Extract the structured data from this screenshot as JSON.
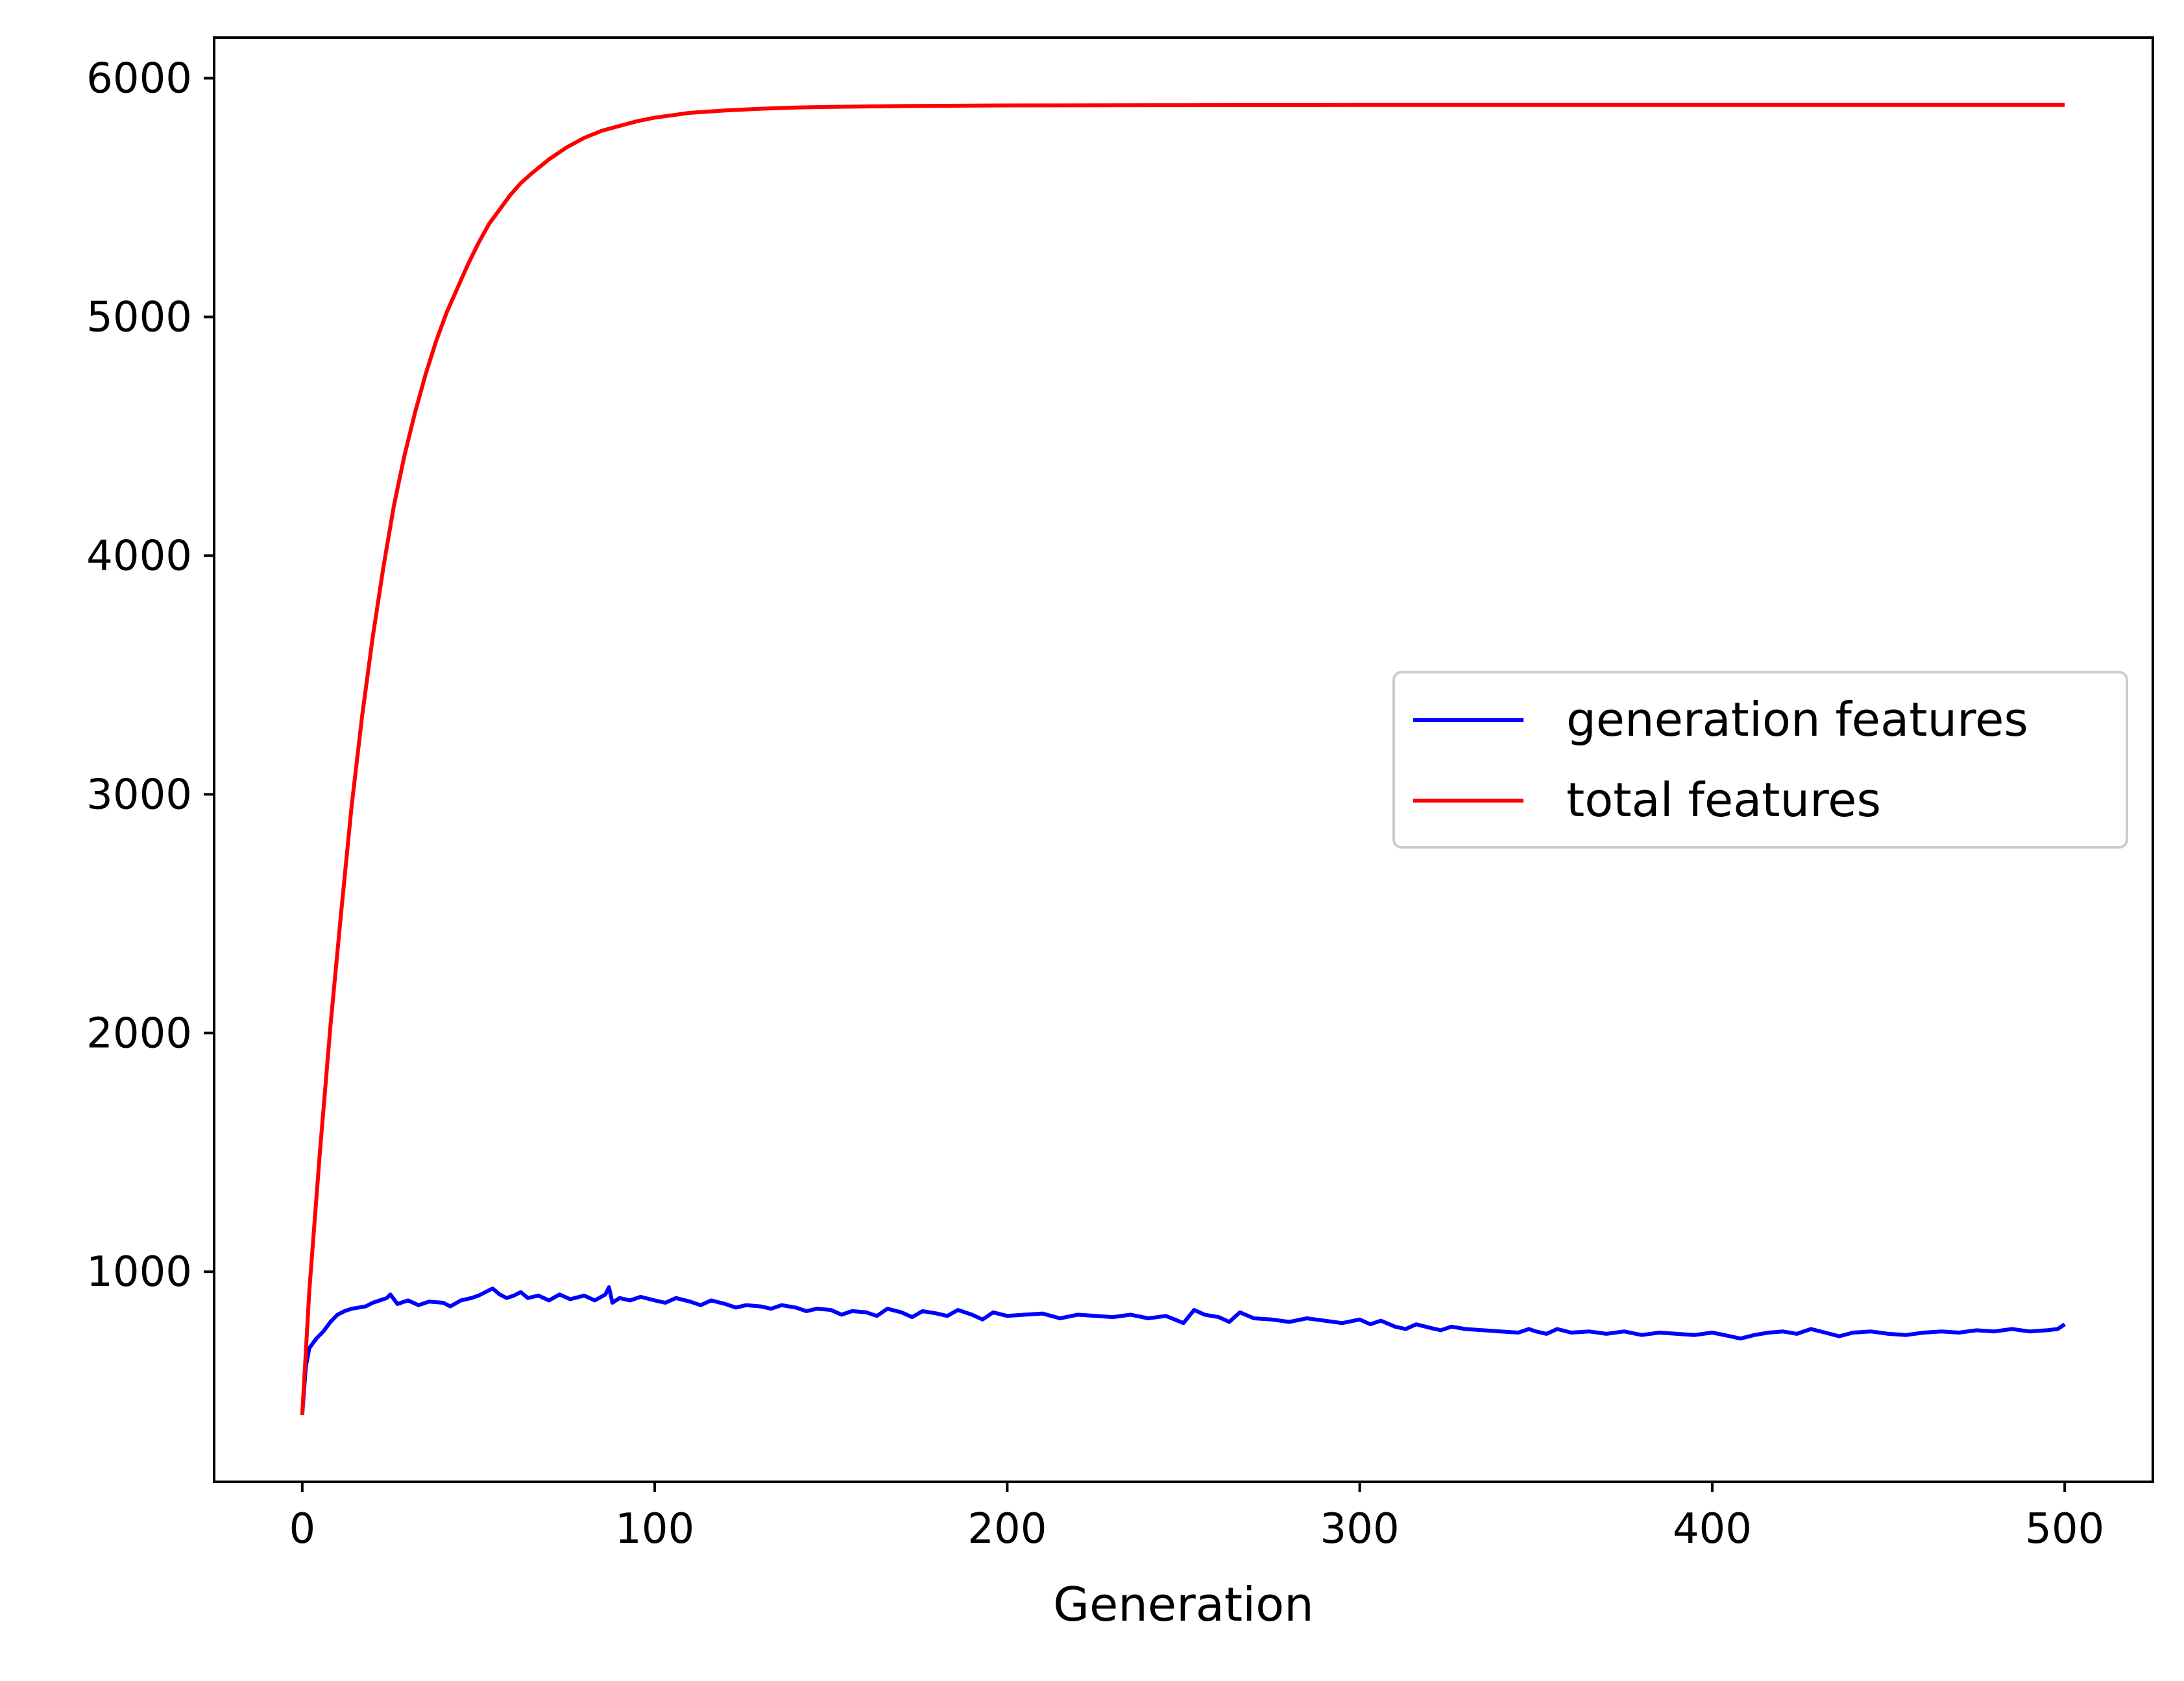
{
  "chart_data": {
    "type": "line",
    "title": "",
    "xlabel": "Generation",
    "ylabel": "",
    "xlim": [
      -25,
      525
    ],
    "ylim": [
      120,
      6170
    ],
    "xticks": [
      0,
      100,
      200,
      300,
      400,
      500
    ],
    "yticks": [
      1000,
      2000,
      3000,
      4000,
      5000,
      6000
    ],
    "grid": false,
    "legend_position": "center-right",
    "series": [
      {
        "name": "generation features",
        "color": "#0000ff",
        "points": [
          [
            0,
            400
          ],
          [
            1,
            600
          ],
          [
            2,
            680
          ],
          [
            4,
            720
          ],
          [
            6,
            750
          ],
          [
            8,
            790
          ],
          [
            10,
            820
          ],
          [
            12,
            835
          ],
          [
            14,
            845
          ],
          [
            16,
            850
          ],
          [
            18,
            855
          ],
          [
            20,
            870
          ],
          [
            22,
            880
          ],
          [
            24,
            890
          ],
          [
            25,
            905
          ],
          [
            27,
            865
          ],
          [
            30,
            880
          ],
          [
            33,
            860
          ],
          [
            36,
            875
          ],
          [
            40,
            870
          ],
          [
            42,
            855
          ],
          [
            45,
            880
          ],
          [
            48,
            890
          ],
          [
            50,
            900
          ],
          [
            52,
            915
          ],
          [
            54,
            930
          ],
          [
            56,
            905
          ],
          [
            58,
            890
          ],
          [
            60,
            900
          ],
          [
            62,
            915
          ],
          [
            64,
            890
          ],
          [
            67,
            900
          ],
          [
            70,
            880
          ],
          [
            73,
            905
          ],
          [
            76,
            885
          ],
          [
            80,
            900
          ],
          [
            83,
            880
          ],
          [
            86,
            905
          ],
          [
            87,
            935
          ],
          [
            88,
            870
          ],
          [
            90,
            890
          ],
          [
            93,
            880
          ],
          [
            96,
            895
          ],
          [
            100,
            880
          ],
          [
            103,
            870
          ],
          [
            106,
            890
          ],
          [
            110,
            875
          ],
          [
            113,
            860
          ],
          [
            116,
            880
          ],
          [
            120,
            865
          ],
          [
            123,
            850
          ],
          [
            126,
            860
          ],
          [
            130,
            855
          ],
          [
            133,
            845
          ],
          [
            136,
            860
          ],
          [
            140,
            850
          ],
          [
            143,
            835
          ],
          [
            146,
            845
          ],
          [
            150,
            840
          ],
          [
            153,
            820
          ],
          [
            156,
            835
          ],
          [
            160,
            830
          ],
          [
            163,
            815
          ],
          [
            166,
            845
          ],
          [
            170,
            830
          ],
          [
            173,
            810
          ],
          [
            176,
            835
          ],
          [
            180,
            825
          ],
          [
            183,
            815
          ],
          [
            186,
            840
          ],
          [
            190,
            820
          ],
          [
            193,
            800
          ],
          [
            196,
            830
          ],
          [
            200,
            815
          ],
          [
            205,
            820
          ],
          [
            210,
            825
          ],
          [
            215,
            805
          ],
          [
            220,
            820
          ],
          [
            225,
            815
          ],
          [
            230,
            810
          ],
          [
            235,
            820
          ],
          [
            240,
            805
          ],
          [
            245,
            815
          ],
          [
            250,
            785
          ],
          [
            253,
            840
          ],
          [
            256,
            820
          ],
          [
            260,
            810
          ],
          [
            263,
            790
          ],
          [
            266,
            830
          ],
          [
            270,
            805
          ],
          [
            275,
            800
          ],
          [
            280,
            790
          ],
          [
            285,
            805
          ],
          [
            290,
            795
          ],
          [
            295,
            785
          ],
          [
            300,
            800
          ],
          [
            303,
            780
          ],
          [
            306,
            795
          ],
          [
            310,
            770
          ],
          [
            313,
            760
          ],
          [
            316,
            780
          ],
          [
            320,
            765
          ],
          [
            323,
            755
          ],
          [
            326,
            770
          ],
          [
            330,
            760
          ],
          [
            335,
            755
          ],
          [
            340,
            750
          ],
          [
            345,
            745
          ],
          [
            348,
            760
          ],
          [
            350,
            750
          ],
          [
            353,
            740
          ],
          [
            356,
            760
          ],
          [
            360,
            745
          ],
          [
            365,
            750
          ],
          [
            370,
            740
          ],
          [
            375,
            750
          ],
          [
            380,
            735
          ],
          [
            385,
            745
          ],
          [
            390,
            740
          ],
          [
            395,
            735
          ],
          [
            400,
            745
          ],
          [
            405,
            730
          ],
          [
            408,
            720
          ],
          [
            412,
            735
          ],
          [
            416,
            745
          ],
          [
            420,
            750
          ],
          [
            424,
            740
          ],
          [
            428,
            760
          ],
          [
            432,
            745
          ],
          [
            436,
            730
          ],
          [
            440,
            745
          ],
          [
            445,
            750
          ],
          [
            450,
            740
          ],
          [
            455,
            735
          ],
          [
            460,
            745
          ],
          [
            465,
            750
          ],
          [
            470,
            745
          ],
          [
            475,
            755
          ],
          [
            480,
            750
          ],
          [
            485,
            760
          ],
          [
            490,
            750
          ],
          [
            495,
            755
          ],
          [
            498,
            760
          ],
          [
            500,
            780
          ]
        ]
      },
      {
        "name": "total features",
        "color": "#ff0000",
        "points": [
          [
            0,
            400
          ],
          [
            2,
            920
          ],
          [
            5,
            1500
          ],
          [
            8,
            2030
          ],
          [
            11,
            2500
          ],
          [
            14,
            2950
          ],
          [
            17,
            3330
          ],
          [
            20,
            3660
          ],
          [
            23,
            3950
          ],
          [
            26,
            4210
          ],
          [
            29,
            4420
          ],
          [
            32,
            4600
          ],
          [
            35,
            4760
          ],
          [
            38,
            4900
          ],
          [
            41,
            5020
          ],
          [
            44,
            5120
          ],
          [
            47,
            5220
          ],
          [
            50,
            5310
          ],
          [
            53,
            5390
          ],
          [
            56,
            5450
          ],
          [
            59,
            5510
          ],
          [
            62,
            5560
          ],
          [
            65,
            5600
          ],
          [
            70,
            5660
          ],
          [
            75,
            5710
          ],
          [
            80,
            5750
          ],
          [
            85,
            5780
          ],
          [
            90,
            5800
          ],
          [
            95,
            5820
          ],
          [
            100,
            5835
          ],
          [
            110,
            5855
          ],
          [
            120,
            5865
          ],
          [
            130,
            5872
          ],
          [
            140,
            5877
          ],
          [
            150,
            5880
          ],
          [
            175,
            5884
          ],
          [
            200,
            5886
          ],
          [
            250,
            5887
          ],
          [
            300,
            5888
          ],
          [
            400,
            5888
          ],
          [
            500,
            5888
          ]
        ]
      }
    ]
  }
}
